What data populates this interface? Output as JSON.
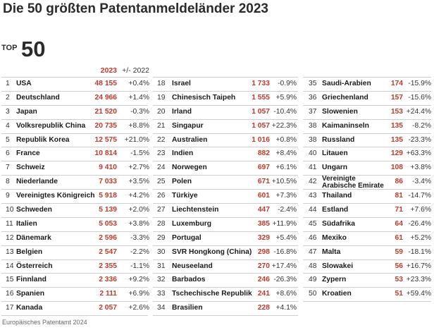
{
  "title": "Die 50 größten Patentanmeldeländer 2023",
  "badge": {
    "small": "TOP",
    "big": "50"
  },
  "header": {
    "year": "2023",
    "change": "+/- 2022"
  },
  "columns": [
    [
      {
        "rank": "1",
        "country": "USA",
        "value": "48 155",
        "change": "+0.4%"
      },
      {
        "rank": "2",
        "country": "Deutschland",
        "value": "24 966",
        "change": "+1.4%"
      },
      {
        "rank": "3",
        "country": "Japan",
        "value": "21 520",
        "change": "-0.3%"
      },
      {
        "rank": "4",
        "country": "Volksrepublik China",
        "value": "20 735",
        "change": "+8.8%"
      },
      {
        "rank": "5",
        "country": "Republik Korea",
        "value": "12 575",
        "change": "+21.0%"
      },
      {
        "rank": "6",
        "country": "France",
        "value": "10 814",
        "change": "-1.5%"
      },
      {
        "rank": "7",
        "country": "Schweiz",
        "value": "9 410",
        "change": "+2.7%"
      },
      {
        "rank": "8",
        "country": "Niederlande",
        "value": "7 033",
        "change": "+3.5%"
      },
      {
        "rank": "9",
        "country": "Vereinigtes Königreich",
        "value": "5 918",
        "change": "+4.2%"
      },
      {
        "rank": "10",
        "country": "Schweden",
        "value": "5 139",
        "change": "+2.0%"
      },
      {
        "rank": "11",
        "country": "Italien",
        "value": "5 053",
        "change": "+3.8%"
      },
      {
        "rank": "12",
        "country": "Dänemark",
        "value": "2 596",
        "change": "-3.3%"
      },
      {
        "rank": "13",
        "country": "Belgien",
        "value": "2 547",
        "change": "-2.2%"
      },
      {
        "rank": "14",
        "country": "Österreich",
        "value": "2 355",
        "change": "-1.1%"
      },
      {
        "rank": "15",
        "country": "Finnland",
        "value": "2 336",
        "change": "+9.2%"
      },
      {
        "rank": "16",
        "country": "Spanien",
        "value": "2 111",
        "change": "+6.9%"
      },
      {
        "rank": "17",
        "country": "Kanada",
        "value": "2 057",
        "change": "+2.6%"
      }
    ],
    [
      {
        "rank": "18",
        "country": "Israel",
        "value": "1 733",
        "change": "-0.9%"
      },
      {
        "rank": "19",
        "country": "Chinesisch Taipeh",
        "value": "1 555",
        "change": "+5.9%"
      },
      {
        "rank": "20",
        "country": "Irland",
        "value": "1 057",
        "change": "-10.4%"
      },
      {
        "rank": "21",
        "country": "Singapur",
        "value": "1 057",
        "change": "+22.3%"
      },
      {
        "rank": "22",
        "country": "Australien",
        "value": "1 016",
        "change": "+0.8%"
      },
      {
        "rank": "23",
        "country": "Indien",
        "value": "882",
        "change": "+8.4%"
      },
      {
        "rank": "24",
        "country": "Norwegen",
        "value": "697",
        "change": "+6.1%"
      },
      {
        "rank": "25",
        "country": "Polen",
        "value": "671",
        "change": "+10.5%"
      },
      {
        "rank": "26",
        "country": "Türkiye",
        "value": "601",
        "change": "+7.3%"
      },
      {
        "rank": "27",
        "country": "Liechtenstein",
        "value": "447",
        "change": "-2.4%"
      },
      {
        "rank": "28",
        "country": "Luxemburg",
        "value": "385",
        "change": "+11.9%"
      },
      {
        "rank": "29",
        "country": "Portugal",
        "value": "329",
        "change": "+5.4%"
      },
      {
        "rank": "30",
        "country": "SVR Hongkong (China)",
        "value": "298",
        "change": "-16.8%"
      },
      {
        "rank": "31",
        "country": "Neuseeland",
        "value": "270",
        "change": "+17.4%"
      },
      {
        "rank": "32",
        "country": "Barbados",
        "value": "246",
        "change": "-26.3%"
      },
      {
        "rank": "33",
        "country": "Tschechische Republik",
        "value": "241",
        "change": "+8.6%"
      },
      {
        "rank": "34",
        "country": "Brasilien",
        "value": "228",
        "change": "+4.1%"
      }
    ],
    [
      {
        "rank": "35",
        "country": "Saudi-Arabien",
        "value": "174",
        "change": "-15.9%"
      },
      {
        "rank": "36",
        "country": "Griechenland",
        "value": "157",
        "change": "-15.6%"
      },
      {
        "rank": "37",
        "country": "Slowenien",
        "value": "153",
        "change": "+24.4%"
      },
      {
        "rank": "38",
        "country": "Kaimaninseln",
        "value": "135",
        "change": "-8.2%"
      },
      {
        "rank": "38",
        "country": "Russland",
        "value": "135",
        "change": "-23.3%"
      },
      {
        "rank": "40",
        "country": "Litauen",
        "value": "129",
        "change": "+63.3%"
      },
      {
        "rank": "41",
        "country": "Ungarn",
        "value": "108",
        "change": "+3.8%"
      },
      {
        "rank": "42",
        "country": "Vereinigte Arabische Emirate",
        "value": "86",
        "change": "-3.4%"
      },
      {
        "rank": "43",
        "country": "Thailand",
        "value": "81",
        "change": "-14.7%"
      },
      {
        "rank": "44",
        "country": "Estland",
        "value": "71",
        "change": "+7.6%"
      },
      {
        "rank": "45",
        "country": "Südafrika",
        "value": "64",
        "change": "-26.4%"
      },
      {
        "rank": "46",
        "country": "Mexiko",
        "value": "61",
        "change": "+5.2%"
      },
      {
        "rank": "47",
        "country": "Malta",
        "value": "59",
        "change": "-18.1%"
      },
      {
        "rank": "48",
        "country": "Slowakei",
        "value": "56",
        "change": "+16.7%"
      },
      {
        "rank": "49",
        "country": "Zypern",
        "value": "53",
        "change": "+23.3%"
      },
      {
        "rank": "50",
        "country": "Kroatien",
        "value": "51",
        "change": "+59.4%"
      }
    ]
  ],
  "source": "Europäisches Patentamt 2024",
  "colors": {
    "value": "#c0392b",
    "title": "#2b2b2b",
    "divider": "#cfcfcf"
  }
}
